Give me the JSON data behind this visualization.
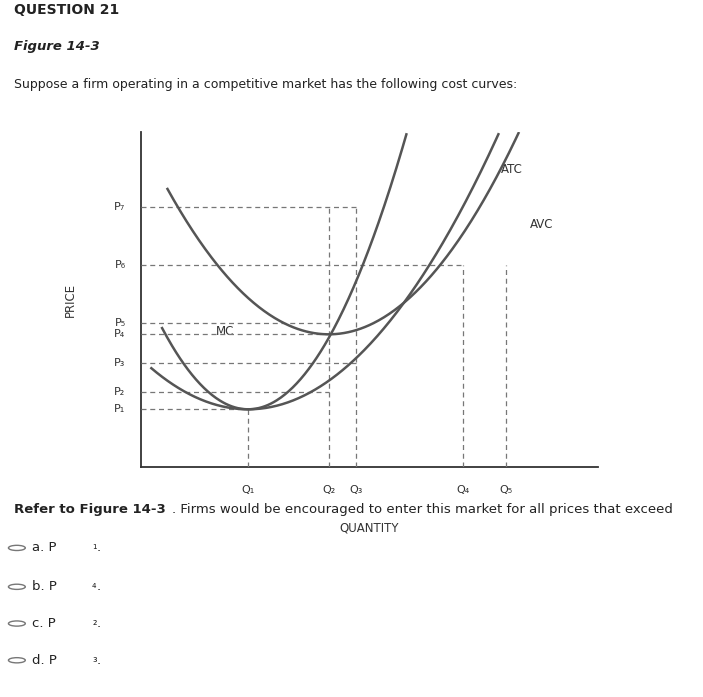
{
  "title_section": "QUESTION 21",
  "figure_label": "Figure 14-3",
  "figure_desc": "Suppose a firm operating in a competitive market has the following cost curves:",
  "ylabel": "PRICE",
  "xlabel": "QUANTITY",
  "price_labels": [
    "P₇",
    "P₆",
    "P₅",
    "P₄",
    "P₃",
    "P₂",
    "P₁"
  ],
  "price_values": [
    4.5,
    3.5,
    2.5,
    2.3,
    1.8,
    1.3,
    1.0
  ],
  "qty_labels": [
    "Q₁",
    "Q₂",
    "Q₃",
    "Q₄",
    "Q₅"
  ],
  "qty_values": [
    2.0,
    3.5,
    4.0,
    6.0,
    6.8
  ],
  "curve_color": "#555555",
  "dashed_color": "#777777",
  "background": "#ffffff",
  "xlim": [
    0,
    8.5
  ],
  "ylim": [
    0,
    5.8
  ],
  "mc_a": 0.55,
  "avc_a": 0.22,
  "atc_a": 0.28,
  "q1_min": 2.0,
  "p1_min": 1.0,
  "q2_min": 3.5,
  "p4_min": 2.3
}
